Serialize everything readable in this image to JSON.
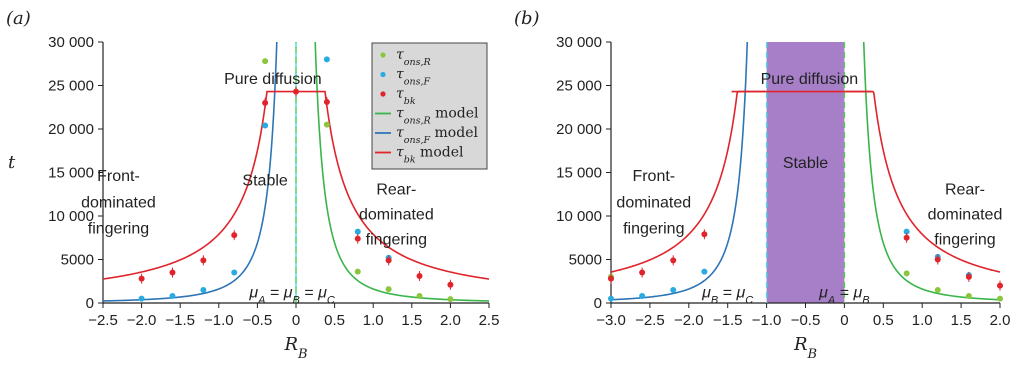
{
  "chart_data": [
    {
      "type": "scatter",
      "panel_label": "(a)",
      "xlabel": "R_B",
      "ylabel": "t",
      "xlim": [
        -2.5,
        2.5
      ],
      "ylim": [
        0,
        30000
      ],
      "xticks": [
        "−2.5",
        "−2.0",
        "−1.5",
        "−1.0",
        "−0.5",
        "0",
        "0.5",
        "1.0",
        "1.5",
        "2.0",
        "2.5"
      ],
      "yticks": [
        "0",
        "5000",
        "10 000",
        "15 000",
        "20 000",
        "25 000",
        "30 000"
      ],
      "grid": false,
      "legend": "top-right",
      "legend_entries": [
        {
          "label": "τons,R",
          "kind": "marker",
          "color": "#8cc63f"
        },
        {
          "label": "τons,F",
          "kind": "marker",
          "color": "#29abe2"
        },
        {
          "label": "τbk",
          "kind": "marker",
          "color": "#e0242b"
        },
        {
          "label": "τons,R model",
          "kind": "line",
          "color": "#39b54a"
        },
        {
          "label": "τons,F model",
          "kind": "line",
          "color": "#2e75b6"
        },
        {
          "label": "τbk model",
          "kind": "line",
          "color": "#e0242b"
        }
      ],
      "series": [
        {
          "name": "τons,R",
          "color": "#8cc63f",
          "x": [
            -0.4,
            0.4,
            0.8,
            1.2,
            1.6,
            2.0
          ],
          "y": [
            27800,
            20500,
            3600,
            1600,
            800,
            450
          ]
        },
        {
          "name": "τons,F",
          "color": "#29abe2",
          "x": [
            -2.0,
            -1.6,
            -1.2,
            -0.8,
            -0.4,
            0.4,
            0.8,
            1.2
          ],
          "y": [
            500,
            800,
            1500,
            3500,
            20400,
            28000,
            8200,
            5200
          ]
        },
        {
          "name": "τbk",
          "color": "#e0242b",
          "x": [
            -2.0,
            -1.6,
            -1.2,
            -0.8,
            -0.4,
            0.0,
            0.4,
            0.8,
            1.2,
            1.6,
            2.0
          ],
          "y": [
            2800,
            3500,
            4900,
            7800,
            23000,
            24300,
            23100,
            7400,
            4900,
            3100,
            2100
          ]
        }
      ],
      "annotations": [
        {
          "text": "Pure diffusion",
          "x": -0.3,
          "y": 25200
        },
        {
          "text": "Stable",
          "x": -0.4,
          "y": 13500
        },
        {
          "text": "Front-",
          "x": -2.3,
          "y": 14000
        },
        {
          "text": "dominated",
          "x": -2.3,
          "y": 11000
        },
        {
          "text": "fingering",
          "x": -2.3,
          "y": 8000
        },
        {
          "text": "Rear-",
          "x": 1.3,
          "y": 12500
        },
        {
          "text": "dominated",
          "x": 1.3,
          "y": 9600
        },
        {
          "text": "fingering",
          "x": 1.3,
          "y": 6700
        },
        {
          "text": "μA = μB = μC",
          "x": -0.05,
          "y": 1200
        }
      ]
    },
    {
      "type": "scatter",
      "panel_label": "(b)",
      "xlabel": "R_B",
      "ylabel": "",
      "xlim": [
        -3.0,
        2.0
      ],
      "ylim": [
        0,
        30000
      ],
      "xticks": [
        "−3.0",
        "−2.5",
        "−2.0",
        "−1.5",
        "−1.0",
        "−0.5",
        "0",
        "0.5",
        "1.0",
        "1.5",
        "2.0"
      ],
      "yticks": [
        "0",
        "5000",
        "10 000",
        "15 000",
        "20 000",
        "25 000",
        "30 000"
      ],
      "grid": false,
      "shaded_region": {
        "x": [
          -1.0,
          0.0
        ],
        "color": "#a77fc8"
      },
      "series": [
        {
          "name": "τons,R",
          "color": "#8cc63f",
          "x": [
            -3.0,
            0.8,
            1.2,
            1.6,
            2.0
          ],
          "y": [
            3000,
            3400,
            1500,
            800,
            500
          ]
        },
        {
          "name": "τons,F",
          "color": "#29abe2",
          "x": [
            -3.0,
            -2.6,
            -2.2,
            -1.8,
            0.8,
            1.2,
            1.6
          ],
          "y": [
            500,
            800,
            1500,
            3600,
            8200,
            5300,
            3200
          ]
        },
        {
          "name": "τbk",
          "color": "#e0242b",
          "x": [
            -3.0,
            -2.6,
            -2.2,
            -1.8,
            0.8,
            1.2,
            1.6,
            2.0
          ],
          "y": [
            2800,
            3500,
            4900,
            7900,
            7500,
            5000,
            3000,
            2000
          ]
        }
      ],
      "annotations": [
        {
          "text": "Pure diffusion",
          "x": -0.45,
          "y": 25200
        },
        {
          "text": "Stable",
          "x": -0.5,
          "y": 15500
        },
        {
          "text": "Front-",
          "x": -2.45,
          "y": 14000
        },
        {
          "text": "dominated",
          "x": -2.45,
          "y": 11000
        },
        {
          "text": "fingering",
          "x": -2.45,
          "y": 8000
        },
        {
          "text": "Rear-",
          "x": 1.55,
          "y": 12500
        },
        {
          "text": "dominated",
          "x": 1.55,
          "y": 9600
        },
        {
          "text": "fingering",
          "x": 1.55,
          "y": 6700
        },
        {
          "text": "μB = μC",
          "x": -1.5,
          "y": 1200
        },
        {
          "text": "μA = μB",
          "x": -0.0,
          "y": 1200
        }
      ]
    }
  ],
  "colors": {
    "model_R": "#39b54a",
    "model_F": "#2e75b6",
    "model_bk": "#e0242b",
    "divider_green": "#4dd04d",
    "divider_cyan": "#4fd8e8",
    "legend_bg": "#d8d8d8"
  }
}
